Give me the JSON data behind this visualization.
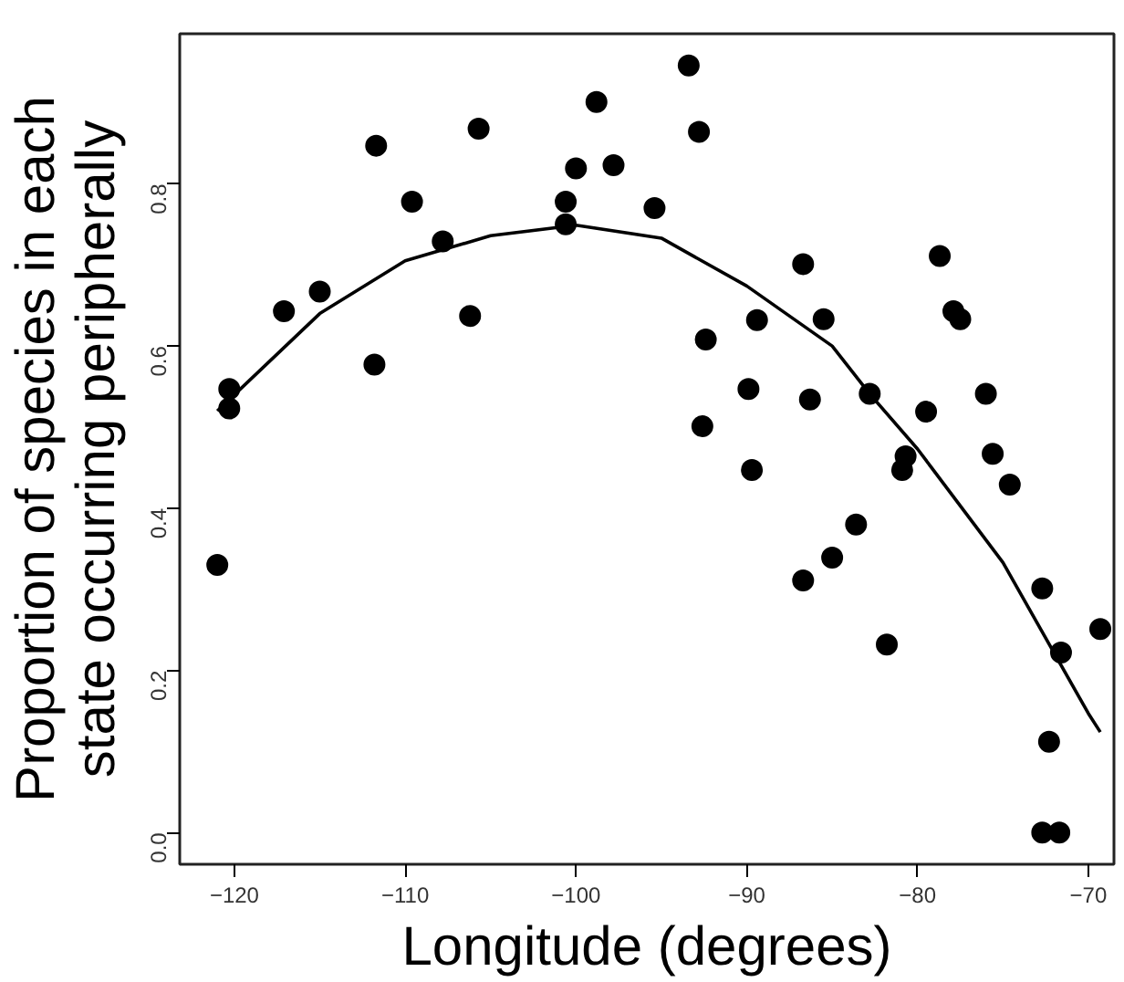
{
  "chart_data": {
    "type": "scatter",
    "xlabel": "Longitude (degrees)",
    "ylabel": "Proportion of species in each\nstate occurring peripherally",
    "xlim": [
      -123.2,
      -68.5
    ],
    "ylim": [
      -0.039,
      0.985
    ],
    "xticks": [
      -120,
      -110,
      -100,
      -90,
      -80,
      -70
    ],
    "yticks": [
      {
        "value": 0,
        "label": "0.0"
      },
      0.2,
      0.4,
      0.6,
      0.8
    ],
    "grid": false,
    "marker": "circle",
    "series": [
      {
        "color": "#000000",
        "x": [
          -121.0,
          -120.3,
          -120.3,
          -117.1,
          -115.0,
          -111.7,
          -111.8,
          -109.6,
          -107.8,
          -105.7,
          -106.2,
          -100.6,
          -100.6,
          -100.0,
          -98.8,
          -97.8,
          -95.4,
          -93.4,
          -92.8,
          -92.4,
          -89.4,
          -92.6,
          -89.9,
          -89.7,
          -86.7,
          -85.5,
          -86.3,
          -82.8,
          -83.6,
          -85.0,
          -78.7,
          -77.9,
          -77.5,
          -79.5,
          -80.7,
          -80.9,
          -76.0,
          -75.6,
          -74.6,
          -86.7,
          -81.8,
          -72.7,
          -69.3,
          -71.6,
          -72.3,
          -72.7,
          -71.7
        ],
        "values": [
          0.33,
          0.547,
          0.523,
          0.643,
          0.667,
          0.847,
          0.577,
          0.778,
          0.729,
          0.868,
          0.637,
          0.778,
          0.75,
          0.819,
          0.901,
          0.823,
          0.77,
          0.946,
          0.864,
          0.608,
          0.632,
          0.501,
          0.547,
          0.447,
          0.701,
          0.633,
          0.534,
          0.541,
          0.38,
          0.339,
          0.711,
          0.643,
          0.633,
          0.519,
          0.464,
          0.447,
          0.541,
          0.467,
          0.429,
          0.311,
          0.232,
          0.301,
          0.251,
          0.222,
          0.112,
          0.0,
          0.0
        ]
      },
      {
        "type": "line",
        "color": "#000000",
        "marker": "none",
        "x": [
          -121.0,
          -115.0,
          -110.0,
          -105.0,
          -100.0,
          -95.0,
          -90.0,
          -85.0,
          -82.8,
          -80.0,
          -75.0,
          -70.0,
          -69.3
        ],
        "values": [
          0.52,
          0.64,
          0.705,
          0.736,
          0.749,
          0.733,
          0.674,
          0.6,
          0.541,
          0.473,
          0.333,
          0.147,
          0.124
        ]
      }
    ]
  }
}
